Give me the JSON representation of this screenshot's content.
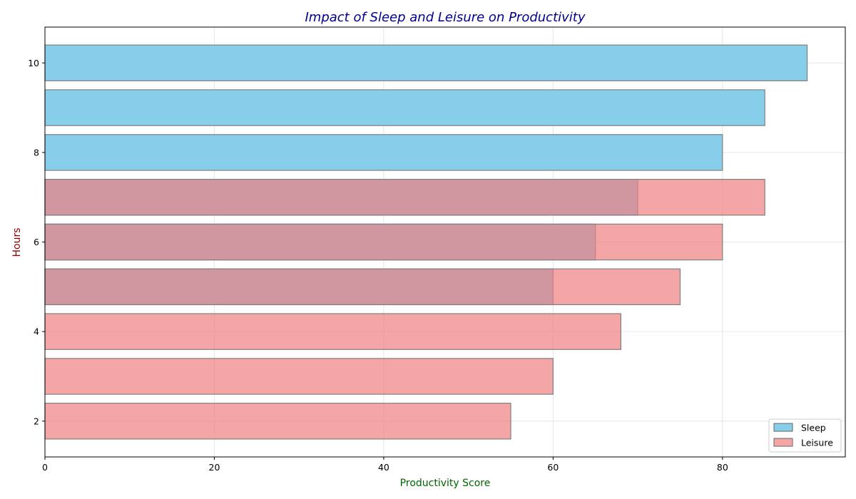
{
  "chart_data": {
    "type": "bar",
    "orientation": "horizontal",
    "title": "Impact of Sleep and Leisure on Productivity",
    "xlabel": "Productivity Score",
    "ylabel": "Hours",
    "xlim": [
      0,
      94.5
    ],
    "ylim": [
      1.2,
      10.8
    ],
    "xticks": [
      0,
      20,
      40,
      60,
      80
    ],
    "yticks": [
      2,
      4,
      6,
      8,
      10
    ],
    "grid": true,
    "legend_position": "lower-right",
    "series": [
      {
        "name": "Sleep",
        "color": "#87CEEB",
        "points": [
          {
            "hours": 5,
            "score": 60
          },
          {
            "hours": 6,
            "score": 65
          },
          {
            "hours": 7,
            "score": 70
          },
          {
            "hours": 8,
            "score": 80
          },
          {
            "hours": 9,
            "score": 85
          },
          {
            "hours": 10,
            "score": 90
          }
        ]
      },
      {
        "name": "Leisure",
        "color": "#F08080",
        "points": [
          {
            "hours": 2,
            "score": 55
          },
          {
            "hours": 3,
            "score": 60
          },
          {
            "hours": 4,
            "score": 68
          },
          {
            "hours": 5,
            "score": 75
          },
          {
            "hours": 6,
            "score": 80
          },
          {
            "hours": 7,
            "score": 85
          }
        ]
      }
    ]
  },
  "colors": {
    "title": "#00008B",
    "xlabel": "#006400",
    "ylabel": "#8B0000"
  }
}
